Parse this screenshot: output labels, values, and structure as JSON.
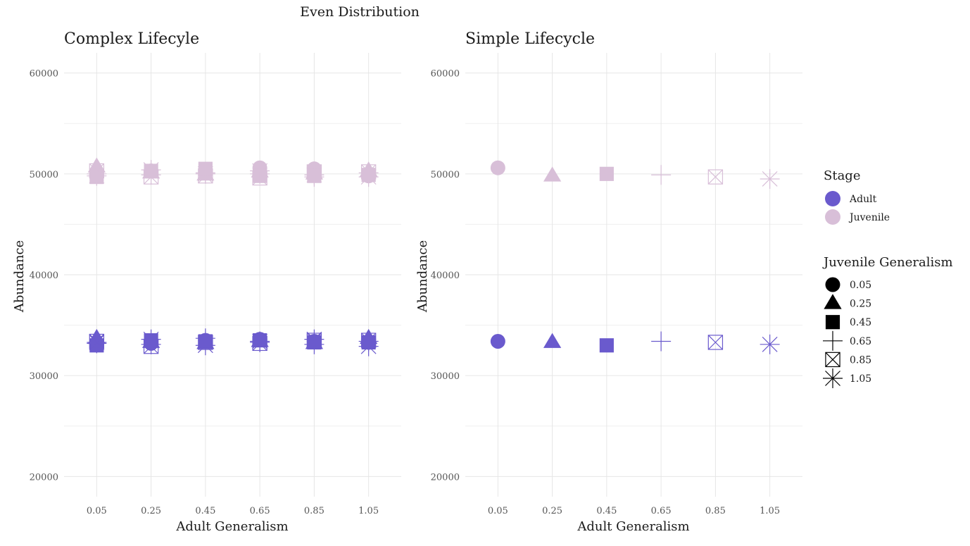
{
  "chart_data": {
    "type": "scatter",
    "title": "Even Distribution",
    "colors": {
      "Adult": "#6a5acd",
      "Juvenile": "#d8bfd8"
    },
    "x_ticks": [
      "0.05",
      "0.25",
      "0.45",
      "0.65",
      "0.85",
      "1.05"
    ],
    "y_ticks": [
      "20000",
      "30000",
      "40000",
      "50000",
      "60000"
    ],
    "ylim": [
      18000,
      62000
    ],
    "grid": true,
    "legend_position": "right",
    "legends": {
      "stage": {
        "title": "Stage",
        "items": [
          {
            "label": "Adult",
            "key": "Adult"
          },
          {
            "label": "Juvenile",
            "key": "Juvenile"
          }
        ]
      },
      "shape": {
        "title": "Juvenile Generalism",
        "items": [
          {
            "label": "0.05",
            "shape": "circle"
          },
          {
            "label": "0.25",
            "shape": "triangle"
          },
          {
            "label": "0.45",
            "shape": "square"
          },
          {
            "label": "0.65",
            "shape": "plus"
          },
          {
            "label": "0.85",
            "shape": "boxx"
          },
          {
            "label": "1.05",
            "shape": "asterisk"
          }
        ]
      }
    },
    "panels": [
      {
        "title": "Complex Lifecyle",
        "xlabel": "Adult Generalism",
        "ylabel": "Abundance",
        "series": [
          {
            "stage": "Juvenile",
            "juvenile_generalism": "0.05",
            "shape": "circle",
            "points": [
              [
                0.05,
                50200
              ],
              [
                0.25,
                50300
              ],
              [
                0.45,
                50100
              ],
              [
                0.65,
                50600
              ],
              [
                0.85,
                50500
              ],
              [
                1.05,
                49800
              ]
            ]
          },
          {
            "stage": "Juvenile",
            "juvenile_generalism": "0.25",
            "shape": "triangle",
            "points": [
              [
                0.05,
                50700
              ],
              [
                0.25,
                50100
              ],
              [
                0.45,
                49900
              ],
              [
                0.65,
                50200
              ],
              [
                0.85,
                50000
              ],
              [
                1.05,
                50300
              ]
            ]
          },
          {
            "stage": "Juvenile",
            "juvenile_generalism": "0.45",
            "shape": "square",
            "points": [
              [
                0.05,
                49700
              ],
              [
                0.25,
                50300
              ],
              [
                0.45,
                50500
              ],
              [
                0.65,
                49800
              ],
              [
                0.85,
                49800
              ],
              [
                1.05,
                49900
              ]
            ]
          },
          {
            "stage": "Juvenile",
            "juvenile_generalism": "0.65",
            "shape": "plus",
            "points": [
              [
                0.05,
                50000
              ],
              [
                0.25,
                49900
              ],
              [
                0.45,
                50100
              ],
              [
                0.65,
                50000
              ],
              [
                0.85,
                49700
              ],
              [
                1.05,
                50100
              ]
            ]
          },
          {
            "stage": "Juvenile",
            "juvenile_generalism": "0.85",
            "shape": "boxx",
            "points": [
              [
                0.05,
                50300
              ],
              [
                0.25,
                49700
              ],
              [
                0.45,
                49800
              ],
              [
                0.65,
                49600
              ],
              [
                0.85,
                50200
              ],
              [
                1.05,
                50200
              ]
            ]
          },
          {
            "stage": "Juvenile",
            "juvenile_generalism": "1.05",
            "shape": "asterisk",
            "points": [
              [
                0.05,
                49800
              ],
              [
                0.25,
                50400
              ],
              [
                0.45,
                50000
              ],
              [
                0.65,
                50300
              ],
              [
                0.85,
                49900
              ],
              [
                1.05,
                49700
              ]
            ]
          },
          {
            "stage": "Adult",
            "juvenile_generalism": "0.05",
            "shape": "circle",
            "points": [
              [
                0.05,
                33100
              ],
              [
                0.25,
                33200
              ],
              [
                0.45,
                33500
              ],
              [
                0.65,
                33600
              ],
              [
                0.85,
                33400
              ],
              [
                1.05,
                33300
              ]
            ]
          },
          {
            "stage": "Adult",
            "juvenile_generalism": "0.25",
            "shape": "triangle",
            "points": [
              [
                0.05,
                33700
              ],
              [
                0.25,
                33300
              ],
              [
                0.45,
                33200
              ],
              [
                0.65,
                33400
              ],
              [
                0.85,
                33200
              ],
              [
                1.05,
                33700
              ]
            ]
          },
          {
            "stage": "Adult",
            "juvenile_generalism": "0.45",
            "shape": "square",
            "points": [
              [
                0.05,
                33000
              ],
              [
                0.25,
                33500
              ],
              [
                0.45,
                33400
              ],
              [
                0.65,
                33500
              ],
              [
                0.85,
                33300
              ],
              [
                1.05,
                33300
              ]
            ]
          },
          {
            "stage": "Adult",
            "juvenile_generalism": "0.65",
            "shape": "plus",
            "points": [
              [
                0.05,
                33200
              ],
              [
                0.25,
                33100
              ],
              [
                0.45,
                33700
              ],
              [
                0.65,
                33300
              ],
              [
                0.85,
                33100
              ],
              [
                1.05,
                33400
              ]
            ]
          },
          {
            "stage": "Adult",
            "juvenile_generalism": "0.85",
            "shape": "boxx",
            "points": [
              [
                0.05,
                33400
              ],
              [
                0.25,
                32900
              ],
              [
                0.45,
                33300
              ],
              [
                0.65,
                33200
              ],
              [
                0.85,
                33500
              ],
              [
                1.05,
                33500
              ]
            ]
          },
          {
            "stage": "Adult",
            "juvenile_generalism": "1.05",
            "shape": "asterisk",
            "points": [
              [
                0.05,
                33300
              ],
              [
                0.25,
                33600
              ],
              [
                0.45,
                33000
              ],
              [
                0.65,
                33400
              ],
              [
                0.85,
                33600
              ],
              [
                1.05,
                32900
              ]
            ]
          }
        ]
      },
      {
        "title": "Simple Lifecycle",
        "xlabel": "Adult Generalism",
        "ylabel": "Abundance",
        "series": [
          {
            "stage": "Juvenile",
            "juvenile_generalism": "0.05",
            "shape": "circle",
            "points": [
              [
                0.05,
                50600
              ]
            ]
          },
          {
            "stage": "Juvenile",
            "juvenile_generalism": "0.25",
            "shape": "triangle",
            "points": [
              [
                0.25,
                49800
              ]
            ]
          },
          {
            "stage": "Juvenile",
            "juvenile_generalism": "0.45",
            "shape": "square",
            "points": [
              [
                0.45,
                50000
              ]
            ]
          },
          {
            "stage": "Juvenile",
            "juvenile_generalism": "0.65",
            "shape": "plus",
            "points": [
              [
                0.65,
                49900
              ]
            ]
          },
          {
            "stage": "Juvenile",
            "juvenile_generalism": "0.85",
            "shape": "boxx",
            "points": [
              [
                0.85,
                49700
              ]
            ]
          },
          {
            "stage": "Juvenile",
            "juvenile_generalism": "1.05",
            "shape": "asterisk",
            "points": [
              [
                1.05,
                49500
              ]
            ]
          },
          {
            "stage": "Adult",
            "juvenile_generalism": "0.05",
            "shape": "circle",
            "points": [
              [
                0.05,
                33400
              ]
            ]
          },
          {
            "stage": "Adult",
            "juvenile_generalism": "0.25",
            "shape": "triangle",
            "points": [
              [
                0.25,
                33300
              ]
            ]
          },
          {
            "stage": "Adult",
            "juvenile_generalism": "0.45",
            "shape": "square",
            "points": [
              [
                0.45,
                33000
              ]
            ]
          },
          {
            "stage": "Adult",
            "juvenile_generalism": "0.65",
            "shape": "plus",
            "points": [
              [
                0.65,
                33400
              ]
            ]
          },
          {
            "stage": "Adult",
            "juvenile_generalism": "0.85",
            "shape": "boxx",
            "points": [
              [
                0.85,
                33300
              ]
            ]
          },
          {
            "stage": "Adult",
            "juvenile_generalism": "1.05",
            "shape": "asterisk",
            "points": [
              [
                1.05,
                33100
              ]
            ]
          }
        ]
      }
    ]
  }
}
